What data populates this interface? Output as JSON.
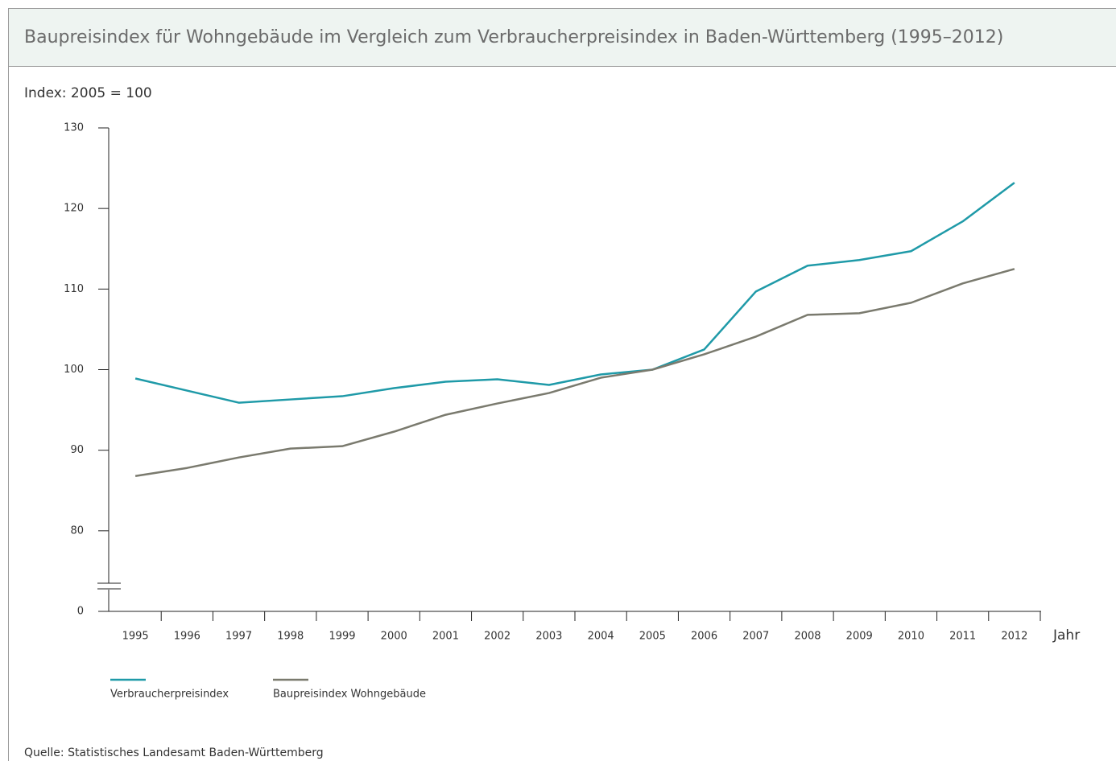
{
  "chart_data": {
    "type": "line",
    "title": "Baupreisindex für Wohngebäude im Vergleich zum Verbraucherpreisindex in Baden-Württemberg (1995–2012)",
    "y_axis_label": "Index: 2005 = 100",
    "x_axis_label": "Jahr",
    "source": "Quelle: Statistisches Landesamt Baden-Württemberg",
    "categories": [
      "1995",
      "1996",
      "1997",
      "1998",
      "1999",
      "2000",
      "2001",
      "2002",
      "2003",
      "2004",
      "2005",
      "2006",
      "2007",
      "2008",
      "2009",
      "2010",
      "2011",
      "2012"
    ],
    "series": [
      {
        "name": "Verbraucherpreisindex",
        "color": "#1f9aa8",
        "values": [
          98.9,
          97.4,
          95.9,
          96.3,
          96.7,
          97.7,
          98.5,
          98.8,
          98.1,
          99.4,
          100,
          102.5,
          109.7,
          112.9,
          113.6,
          114.7,
          118.4,
          123.2
        ]
      },
      {
        "name": "Baupreisindex Wohngebäude",
        "color": "#7a7a6e",
        "values": [
          86.8,
          87.8,
          89.1,
          90.2,
          90.5,
          92.3,
          94.4,
          95.8,
          97.1,
          99.0,
          100,
          101.9,
          104.1,
          106.8,
          107.0,
          108.3,
          110.7,
          112.5
        ]
      }
    ],
    "ylim": [
      0,
      130
    ],
    "y_break": [
      0,
      70
    ],
    "yticks": [
      0,
      80,
      90,
      100,
      110,
      120,
      130
    ]
  }
}
